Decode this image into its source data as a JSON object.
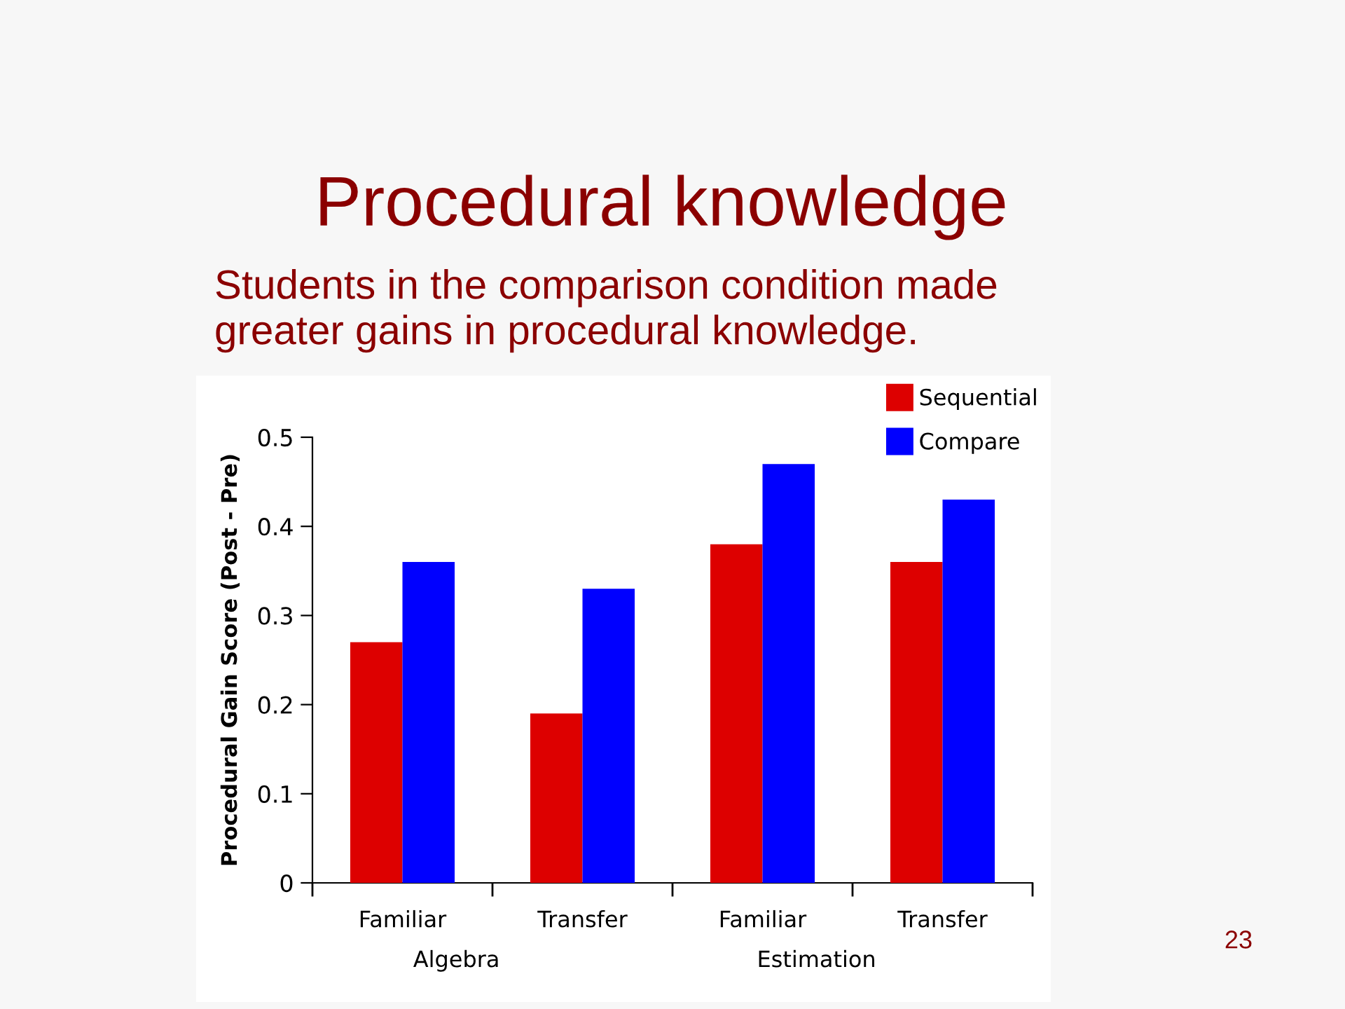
{
  "chart_data": {
    "type": "bar",
    "title": "Procedural knowledge",
    "subtitle": "Students in the comparison condition made\ngreater gains in procedural knowledge.",
    "ylabel": "Procedural Gain Score (Post - Pre)",
    "categories": [
      "Familiar",
      "Transfer",
      "Familiar",
      "Transfer"
    ],
    "series": [
      {
        "name": "Sequential",
        "color": "#dd0000",
        "values": [
          0.27,
          0.19,
          0.38,
          0.36
        ]
      },
      {
        "name": "Compare",
        "color": "#0000ff",
        "values": [
          0.36,
          0.33,
          0.47,
          0.43
        ]
      }
    ],
    "ylim": [
      0,
      0.5
    ],
    "yticks": [
      0,
      0.1,
      0.2,
      0.3,
      0.4,
      0.5
    ],
    "legend": "top right",
    "annotations": [
      "Algebra",
      "Estimation",
      "23"
    ]
  }
}
